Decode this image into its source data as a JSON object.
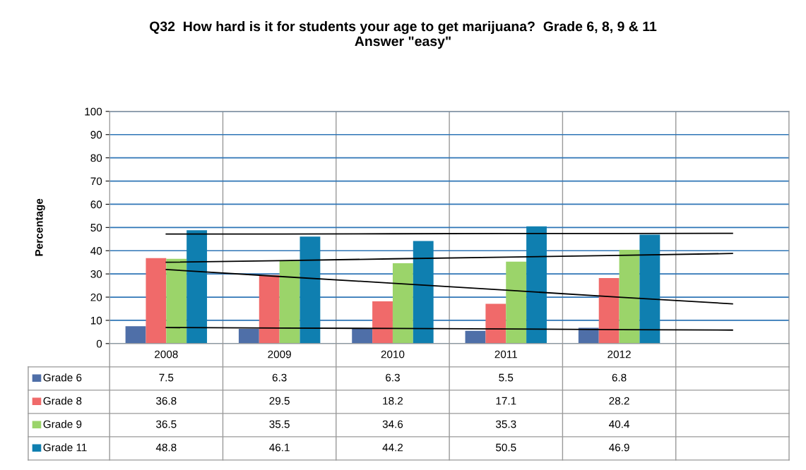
{
  "chart_data": {
    "type": "bar",
    "title": "Q32  How hard is it for students your age to get marijuana?  Grade 6, 8, 9 & 11\nAnswer \"easy\"",
    "ylabel": "Percentage",
    "categories": [
      "2008",
      "2009",
      "2010",
      "2011",
      "2012",
      null
    ],
    "series": [
      {
        "name": "Grade 6",
        "color": "#4f6fa8",
        "values": [
          7.5,
          6.3,
          6.3,
          5.5,
          6.8,
          null
        ],
        "value_labels": [
          "7.5",
          "6.3",
          "6.3",
          "5.5",
          "6.8",
          null
        ]
      },
      {
        "name": "Grade 8",
        "color": "#f06a6a",
        "values": [
          36.8,
          29.5,
          18.2,
          17.1,
          28.2,
          null
        ],
        "value_labels": [
          "36.8",
          "29.5",
          "18.2",
          "17.1",
          "28.2",
          null
        ]
      },
      {
        "name": "Grade 9",
        "color": "#9bd46a",
        "values": [
          36.5,
          35.5,
          34.6,
          35.3,
          40.4,
          null
        ],
        "value_labels": [
          "36.5",
          "35.5",
          "34.6",
          "35.3",
          "40.4",
          null
        ]
      },
      {
        "name": "Grade 11",
        "color": "#0f7fb0",
        "values": [
          48.8,
          46.1,
          44.2,
          50.5,
          46.9,
          null
        ],
        "value_labels": [
          "48.8",
          "46.1",
          "44.2",
          "50.5",
          "46.9",
          null
        ]
      },
      {
        "type": "line",
        "color": "#000000",
        "values": [
          6.9,
          6.7,
          6.5,
          6.3,
          6.0,
          5.8
        ]
      },
      {
        "type": "line",
        "color": "#000000",
        "values": [
          31.9,
          28.9,
          26.0,
          23.0,
          20.0,
          17.1
        ]
      },
      {
        "type": "line",
        "color": "#000000",
        "values": [
          35.0,
          35.7,
          36.5,
          37.2,
          38.0,
          38.8
        ]
      },
      {
        "type": "line",
        "color": "#000000",
        "values": [
          47.2,
          47.2,
          47.3,
          47.4,
          47.4,
          47.5
        ]
      }
    ],
    "ylim": [
      0,
      100
    ],
    "yticks": [
      0,
      10,
      20,
      30,
      40,
      50,
      60,
      70,
      80,
      90,
      100
    ],
    "grid": true,
    "legend": "bottom",
    "marker": "none"
  }
}
